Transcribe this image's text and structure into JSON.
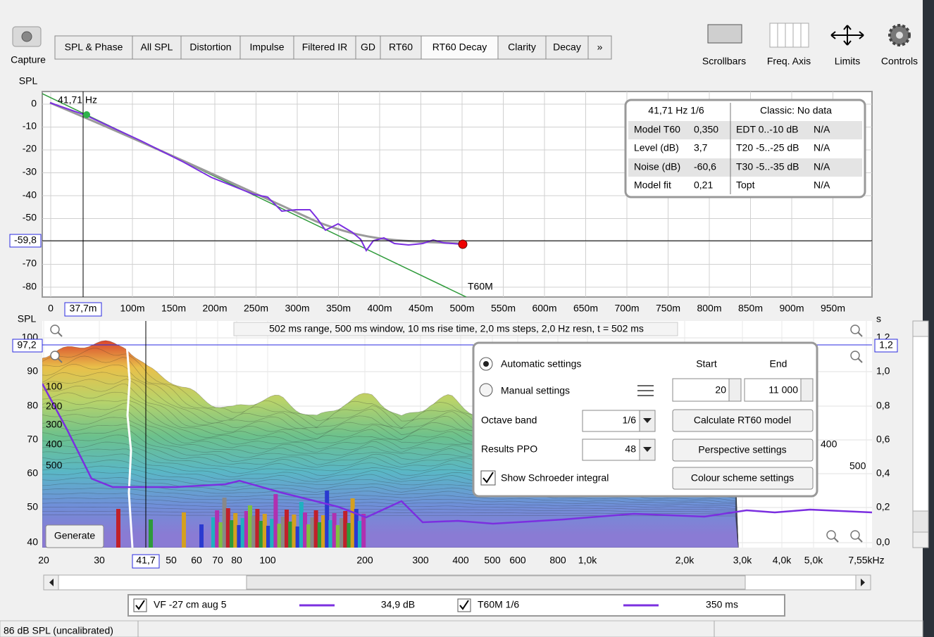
{
  "toolbar": {
    "capture": "Capture",
    "tabs": [
      "SPL & Phase",
      "All SPL",
      "Distortion",
      "Impulse",
      "Filtered IR",
      "GD",
      "RT60",
      "RT60 Decay",
      "Clarity",
      "Decay",
      "»"
    ],
    "tools": [
      "Scrollbars",
      "Freq. Axis",
      "Limits",
      "Controls"
    ]
  },
  "decay_graph": {
    "y_axis_label": "SPL",
    "y_ticks": [
      "0",
      "-10",
      "-20",
      "-30",
      "-40",
      "-50",
      "-70",
      "-80"
    ],
    "y_cursor": "-59,8",
    "x_ticks": [
      "0",
      "100m",
      "150m",
      "200m",
      "250m",
      "300m",
      "350m",
      "400m",
      "450m",
      "500m",
      "550m",
      "600m",
      "650m",
      "700m",
      "750m",
      "800m",
      "850m",
      "900m",
      "950m"
    ],
    "x_cursor": "37,7m",
    "marker_label": "41,71 Hz",
    "model_label": "T60M",
    "info": {
      "header": [
        "41,71 Hz 1/6",
        "Classic: No data"
      ],
      "rows": [
        [
          "Model T60",
          "0,350",
          "EDT  0..-10 dB",
          "N/A"
        ],
        [
          "Level (dB)",
          "3,7",
          "T20 -5..-25 dB",
          "N/A"
        ],
        [
          "Noise (dB)",
          "-60,6",
          "T30 -5..-35 dB",
          "N/A"
        ],
        [
          "Model fit",
          "0,21",
          "Topt",
          "N/A"
        ]
      ]
    }
  },
  "waterfall": {
    "y_axis_label": "SPL",
    "y2_axis_label": "s",
    "y_ticks": [
      "100",
      "90",
      "80",
      "70",
      "60",
      "50",
      "40"
    ],
    "y_cursor": "97,2",
    "y2_ticks": [
      "1,2",
      "1,0",
      "0,8",
      "0,6",
      "0,4",
      "0,2",
      "0,0"
    ],
    "y2_cursor": "1,2",
    "x_ticks": [
      "20",
      "30",
      "50",
      "60",
      "70",
      "80",
      "100",
      "200",
      "300",
      "400",
      "500",
      "600",
      "800",
      "1,0k",
      "2,0k",
      "3,0k",
      "4,0k",
      "5,0k",
      "7,55kHz"
    ],
    "x_cursor": "41,7",
    "depth_labels": [
      "100",
      "200",
      "300",
      "400",
      "500"
    ],
    "depth_labels_right": [
      "400",
      "500"
    ],
    "info_text": "502 ms range, 500 ms window, 10 ms rise time, 2,0 ms steps,  2,0 Hz resn, t = 502 ms",
    "generate": "Generate"
  },
  "settings": {
    "automatic": "Automatic settings",
    "manual": "Manual settings",
    "start_label": "Start",
    "end_label": "End",
    "start": "20",
    "end": "11 000",
    "octave_band_label": "Octave band",
    "octave_band": "1/6",
    "ppo_label": "Results PPO",
    "ppo": "48",
    "schroeder": "Show Schroeder integral",
    "buttons": [
      "Calculate RT60 model",
      "Perspective settings",
      "Colour scheme settings"
    ]
  },
  "legend": [
    {
      "name": "VF -27 cm aug 5",
      "value": "34,9 dB"
    },
    {
      "name": "T60M 1/6",
      "value": "350 ms"
    }
  ],
  "status_bar": "86 dB SPL (uncalibrated)"
}
